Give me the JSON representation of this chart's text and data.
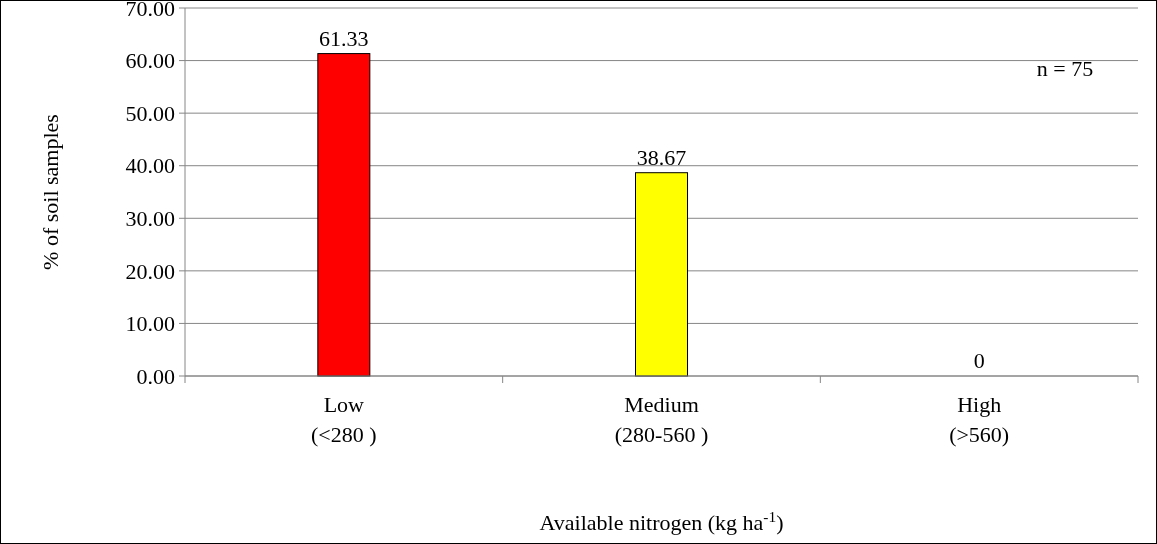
{
  "chart_data": {
    "type": "bar",
    "xlabel": "Available nitrogen (kg ha$^{-1}$)",
    "ylabel": "% of  soil samples",
    "categories": [
      "Low\n(<280 )",
      "Medium\n(280-560 )",
      "High\n(>560)"
    ],
    "values": [
      61.33,
      38.67,
      0
    ],
    "colors": [
      "#ff0000",
      "#ffff00",
      "#ffff00"
    ],
    "ylim": [
      0,
      70
    ],
    "yticks": [
      {
        "value": 0,
        "label": "0.00"
      },
      {
        "value": 10,
        "label": "10.00"
      },
      {
        "value": 20,
        "label": "20.00"
      },
      {
        "value": 30,
        "label": "30.00"
      },
      {
        "value": 40,
        "label": "40.00"
      },
      {
        "value": 50,
        "label": "50.00"
      },
      {
        "value": 60,
        "label": "60.00"
      },
      {
        "value": 70,
        "label": "70.00"
      }
    ],
    "grid": "y",
    "data_labels": true,
    "annotations": [
      "n = 75"
    ]
  }
}
